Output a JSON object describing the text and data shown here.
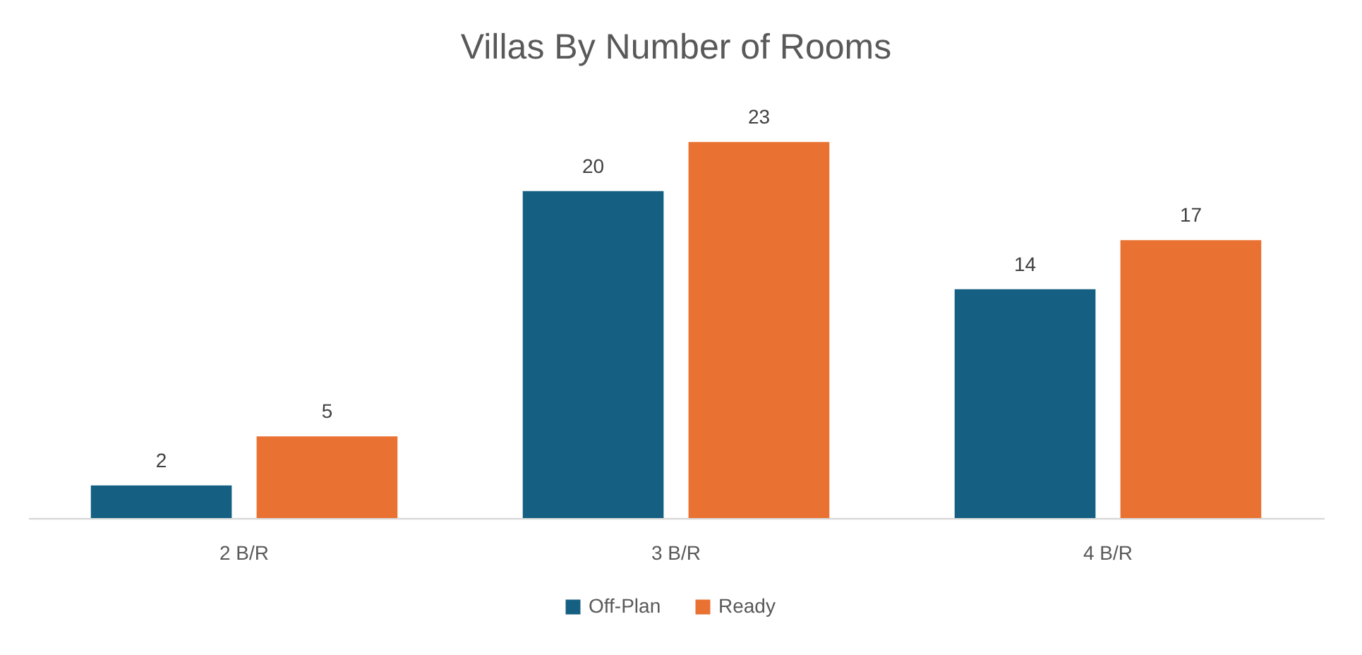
{
  "chart_data": {
    "type": "bar",
    "title": "Villas By Number of Rooms",
    "categories": [
      "2 B/R",
      "3 B/R",
      "4 B/R"
    ],
    "series": [
      {
        "name": "Off-Plan",
        "color": "#156082",
        "values": [
          2,
          20,
          14
        ]
      },
      {
        "name": "Ready",
        "color": "#e97132",
        "values": [
          5,
          23,
          17
        ]
      }
    ],
    "data_labels": true,
    "legend": "bottom",
    "grid": false,
    "tick_labels": "x"
  }
}
